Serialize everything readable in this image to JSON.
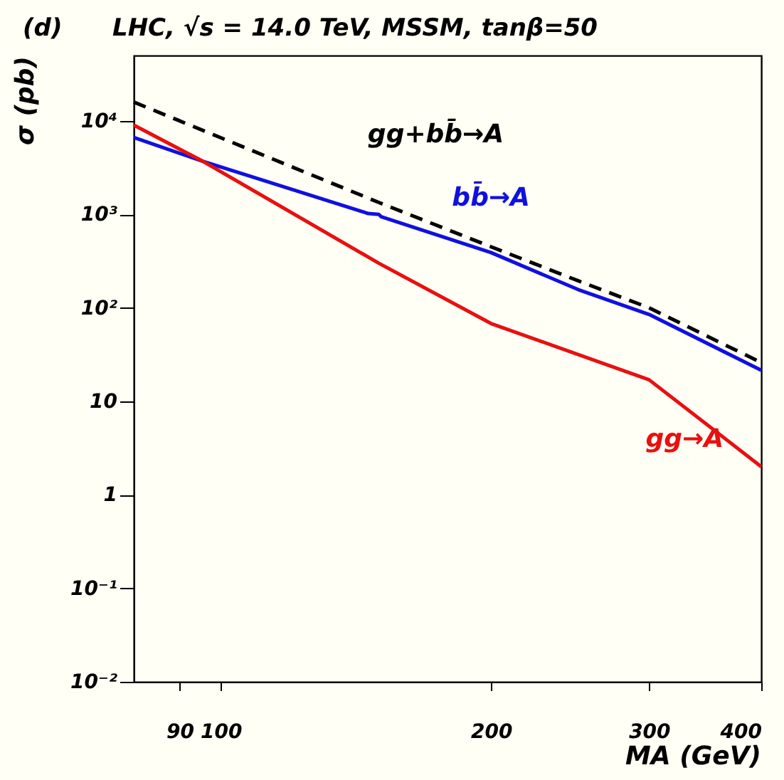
{
  "chart_data": {
    "type": "line",
    "title": "LHC, √s = 14.0 TeV, MSSM, tanβ=50",
    "annotations": [
      "(d)"
    ],
    "xlabel": "MA (GeV)",
    "ylabel": "σ (pb)",
    "log": "xy",
    "grid": false,
    "marker": "none",
    "xlim": [
      80,
      400
    ],
    "xticks": [
      90,
      100,
      200,
      300,
      400
    ],
    "ylim": [
      0.01,
      50000
    ],
    "yticks": [
      {
        "value": 10000,
        "label": "10⁴"
      },
      {
        "value": 1000,
        "label": "10³"
      },
      {
        "value": 100,
        "label": "10²"
      },
      10,
      1,
      {
        "value": 0.1,
        "label": "10⁻¹"
      },
      {
        "value": 0.01,
        "label": "10⁻²"
      }
    ],
    "series": [
      {
        "name": "gg+bb̄→A",
        "color": "#000000",
        "line_style": "dashed",
        "x": [
          80,
          100,
          150,
          200,
          250,
          300,
          400
        ],
        "values": [
          15900,
          6600,
          1340,
          450,
          195,
          100,
          26
        ]
      },
      {
        "name": "bb̄→A",
        "color": "#1010e0",
        "line_style": "solid",
        "x": [
          80,
          95.5,
          146,
          150,
          151,
          200,
          250,
          300,
          400
        ],
        "values": [
          6650,
          3700,
          1020,
          1000,
          940,
          390,
          157,
          85,
          21.5
        ]
      },
      {
        "name": "gg→A",
        "color": "#e81010",
        "line_style": "solid",
        "x": [
          80,
          95.5,
          150,
          200,
          300,
          400
        ],
        "values": [
          9000,
          3700,
          300,
          68,
          17,
          2
        ]
      }
    ]
  }
}
